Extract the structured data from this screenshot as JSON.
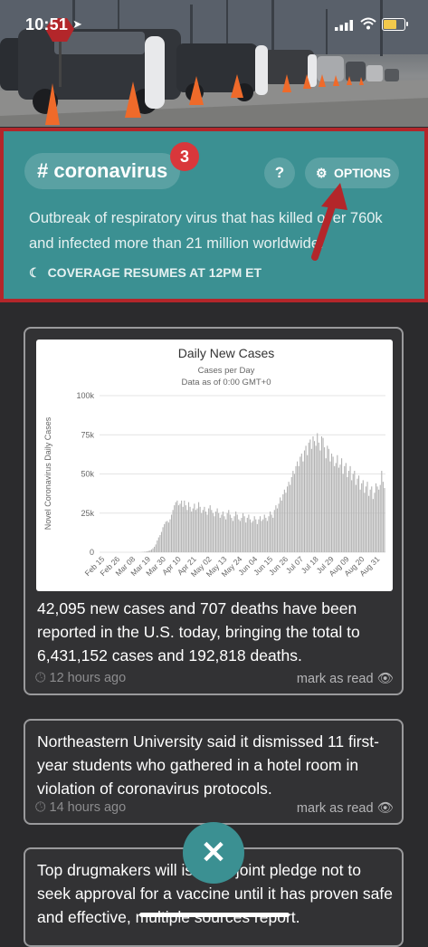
{
  "status_bar": {
    "time": "10:51"
  },
  "topic": {
    "hashtag": "# coronavirus",
    "badge_count": "3",
    "help_label": "?",
    "options_label": "OPTIONS",
    "description": "Outbreak of respiratory virus that has killed over 760k and infected more than 21 million worldwide.",
    "resume_text": "COVERAGE RESUMES AT 12PM ET",
    "accent_color": "#3b9092",
    "highlight_border_color": "#b3262a"
  },
  "cards": [
    {
      "text": "42,095 new cases and 707 deaths have been reported in the U.S. today, bringing the total to 6,431,152 cases and 192,818 deaths.",
      "time": "12 hours ago",
      "mark_label": "mark as read"
    },
    {
      "text": "Northeastern University said it dismissed 11 first-year students who gathered in a hotel room in violation of coronavirus protocols.",
      "time": "14 hours ago",
      "mark_label": "mark as read"
    },
    {
      "text": "Top drugmakers will issue a joint pledge not to seek approval for a vaccine until it has proven safe and effective, multiple sources report."
    }
  ],
  "close_label": "✕",
  "chart_data": {
    "type": "bar",
    "title": "Daily New Cases",
    "subtitle_1": "Cases per Day",
    "subtitle_2": "Data as of 0:00 GMT+0",
    "ylabel": "Novel Coronavirus Daily Cases",
    "ylim": [
      0,
      100000
    ],
    "yticks": [
      "0",
      "25k",
      "50k",
      "75k",
      "100k"
    ],
    "xticks": [
      "Feb 15",
      "Feb 26",
      "Mar 08",
      "Mar 19",
      "Mar 30",
      "Apr 10",
      "Apr 21",
      "May 02",
      "May 13",
      "May 24",
      "Jun 04",
      "Jun 15",
      "Jun 26",
      "Jul 07",
      "Jul 18",
      "Jul 29",
      "Aug 09",
      "Aug 20",
      "Aug 31"
    ],
    "start_date": "Feb 15",
    "values": [
      0,
      0,
      0,
      0,
      0,
      0,
      0,
      0,
      0,
      0,
      0,
      0,
      0,
      0,
      0,
      0,
      0,
      0,
      0,
      0,
      0,
      0,
      0,
      0,
      0,
      0,
      0,
      0,
      0,
      100,
      200,
      300,
      400,
      600,
      900,
      1200,
      1800,
      2500,
      3500,
      5000,
      7500,
      9500,
      11000,
      13000,
      16000,
      18000,
      19500,
      20000,
      19000,
      21000,
      24000,
      27000,
      30000,
      32000,
      33000,
      30000,
      31000,
      33000,
      29000,
      33000,
      30000,
      27000,
      32000,
      29000,
      26000,
      28000,
      31000,
      27000,
      28000,
      32000,
      29000,
      25000,
      27000,
      29000,
      26000,
      24000,
      28000,
      30000,
      27000,
      25000,
      23000,
      26000,
      28000,
      25000,
      22000,
      24000,
      26000,
      23000,
      21000,
      25000,
      27000,
      24000,
      22000,
      20000,
      23000,
      26000,
      24000,
      21000,
      20000,
      22000,
      25000,
      23000,
      19000,
      22000,
      24000,
      21000,
      19000,
      20000,
      23000,
      21000,
      18000,
      21000,
      23000,
      20000,
      21000,
      24000,
      22000,
      20000,
      23000,
      26000,
      24000,
      22000,
      27000,
      30000,
      28000,
      31000,
      35000,
      33000,
      37000,
      40000,
      38000,
      42000,
      45000,
      43000,
      48000,
      52000,
      50000,
      55000,
      58000,
      55000,
      61000,
      63000,
      58000,
      65000,
      68000,
      62000,
      70000,
      72000,
      66000,
      74000,
      71000,
      68000,
      76000,
      70000,
      65000,
      74000,
      73000,
      67000,
      60000,
      68000,
      66000,
      58000,
      63000,
      61000,
      55000,
      57000,
      62000,
      54000,
      56000,
      60000,
      50000,
      55000,
      57000,
      48000,
      52000,
      55000,
      46000,
      50000,
      52000,
      43000,
      47000,
      49000,
      40000,
      44000,
      46000,
      38000,
      42000,
      45000,
      36000,
      40000,
      42000,
      34000,
      38000,
      44000,
      42000,
      40000,
      43000,
      52000,
      45000,
      41000
    ]
  }
}
